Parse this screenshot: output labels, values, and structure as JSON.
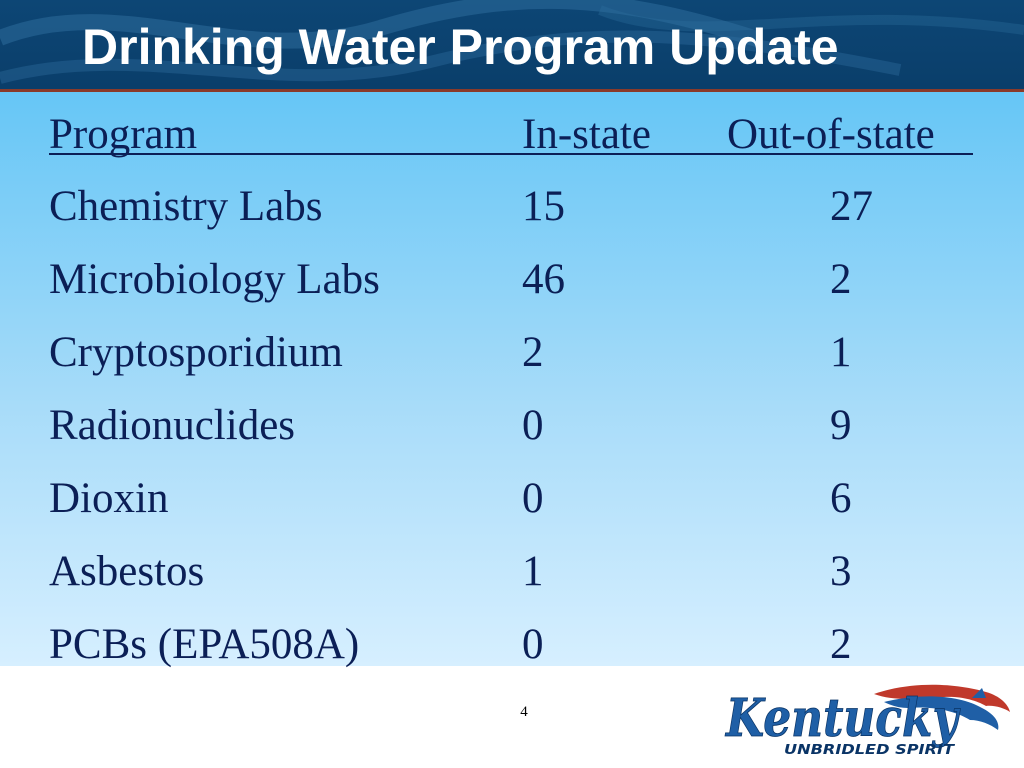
{
  "slide": {
    "title": "Drinking Water Program Update",
    "page_number": "4"
  },
  "table": {
    "headers": [
      "Program",
      "In-state",
      "Out-of-state"
    ],
    "rows": [
      [
        "Chemistry Labs",
        "15",
        "27"
      ],
      [
        "Microbiology Labs",
        "46",
        "2"
      ],
      [
        "Cryptosporidium",
        "2",
        "1"
      ],
      [
        "Radionuclides",
        "0",
        "9"
      ],
      [
        "Dioxin",
        "0",
        "6"
      ],
      [
        "Asbestos",
        "1",
        "3"
      ],
      [
        "PCBs (EPA508A)",
        "0",
        "2"
      ]
    ]
  },
  "logo": {
    "wordmark": "Kentucky",
    "tagline": "UNBRIDLED SPIRIT",
    "icon": "horse-head-icon"
  },
  "colors": {
    "header_bg": "#0d4675",
    "content_top": "#66c6f6",
    "content_bottom": "#d6efff",
    "text": "#0b1f56",
    "logo_blue": "#1f5fa6",
    "logo_red": "#c0392b"
  }
}
